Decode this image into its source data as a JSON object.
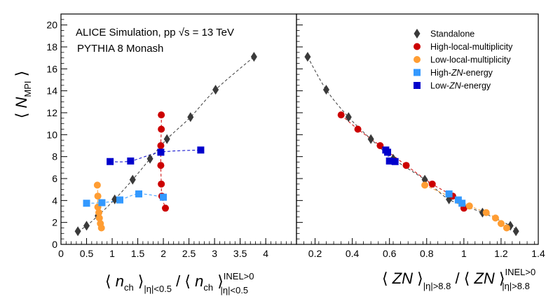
{
  "chart_data": [
    {
      "type": "scatter",
      "title": "ALICE Simulation, pp √s = 13 TeV",
      "subtitle": "PYTHIA 8 Monash",
      "ylabel": "⟨ N_MPI ⟩",
      "xlabel": "⟨ n_ch ⟩_|η|<0.5 / ⟨ n_ch ⟩^INEL>0_|η|<0.5",
      "xlim": [
        0,
        4.6
      ],
      "ylim": [
        0,
        21
      ],
      "xticks": [
        0,
        0.5,
        1,
        1.5,
        2,
        2.5,
        3,
        3.5,
        4
      ],
      "xtick_labels": [
        "0",
        "0.5",
        "1",
        "1.5",
        "2",
        "2.5",
        "3",
        "3.5",
        "4"
      ],
      "yticks": [
        0,
        2,
        4,
        6,
        8,
        10,
        12,
        14,
        16,
        18,
        20
      ],
      "series": [
        {
          "name": "Standalone",
          "marker": "diamond",
          "color": "#3a3a3a",
          "x": [
            0.33,
            0.5,
            0.72,
            1.05,
            1.4,
            1.74,
            2.07,
            2.53,
            3.02,
            3.77
          ],
          "y": [
            1.2,
            1.7,
            2.6,
            4.1,
            5.9,
            7.8,
            9.6,
            11.6,
            14.1,
            17.1
          ]
        },
        {
          "name": "High-local-multiplicity",
          "marker": "circle",
          "color": "#cc0000",
          "x": [
            1.96,
            1.96,
            1.95,
            1.95,
            1.96,
            1.97,
            2.04
          ],
          "y": [
            11.8,
            10.5,
            9.0,
            7.2,
            5.5,
            4.4,
            3.3
          ]
        },
        {
          "name": "Low-local-multiplicity",
          "marker": "circle",
          "color": "#ff9d33",
          "x": [
            0.71,
            0.72,
            0.72,
            0.74,
            0.75,
            0.77,
            0.79
          ],
          "y": [
            5.4,
            4.4,
            3.4,
            2.9,
            2.4,
            1.9,
            1.5
          ]
        },
        {
          "name": "High-ZN-energy",
          "marker": "square",
          "color": "#3399ff",
          "x": [
            0.5,
            0.8,
            1.15,
            1.52,
            2.0
          ],
          "y": [
            3.75,
            3.8,
            4.05,
            4.6,
            4.3
          ]
        },
        {
          "name": "Low-ZN-energy",
          "marker": "square",
          "color": "#0000cc",
          "x": [
            0.96,
            1.36,
            1.95,
            2.73
          ],
          "y": [
            7.55,
            7.6,
            8.4,
            8.6
          ]
        }
      ]
    },
    {
      "type": "scatter",
      "xlabel": "⟨ ZN ⟩_|η|>8.8 / ⟨ ZN ⟩^INEL>0_|η|>8.8",
      "xlim": [
        0.1,
        1.4
      ],
      "ylim": [
        0,
        21
      ],
      "xticks": [
        0.2,
        0.4,
        0.6,
        0.8,
        1.0,
        1.2,
        1.4
      ],
      "xtick_labels": [
        "0.2",
        "0.4",
        "0.6",
        "0.8",
        "1",
        "1.2",
        "1.4"
      ],
      "legend": "top-right",
      "series": [
        {
          "name": "Standalone",
          "marker": "diamond",
          "color": "#3a3a3a",
          "x": [
            0.16,
            0.26,
            0.38,
            0.5,
            0.62,
            0.79,
            0.92,
            1.1,
            1.25,
            1.28
          ],
          "y": [
            17.1,
            14.1,
            11.6,
            9.6,
            7.8,
            5.9,
            4.1,
            2.9,
            1.7,
            1.2
          ]
        },
        {
          "name": "High-local-multiplicity",
          "marker": "circle",
          "color": "#cc0000",
          "x": [
            0.34,
            0.43,
            0.55,
            0.69,
            0.83,
            0.94,
            1.0
          ],
          "y": [
            11.8,
            10.5,
            9.0,
            7.2,
            5.5,
            4.4,
            3.3
          ]
        },
        {
          "name": "Low-local-multiplicity",
          "marker": "circle",
          "color": "#ff9d33",
          "x": [
            0.79,
            0.97,
            1.03,
            1.12,
            1.17,
            1.2,
            1.23
          ],
          "y": [
            5.4,
            4.0,
            3.5,
            2.9,
            2.4,
            1.9,
            1.5
          ]
        },
        {
          "name": "High-ZN-energy",
          "marker": "square",
          "color": "#3399ff",
          "x": [
            0.92,
            0.97,
            0.99
          ],
          "y": [
            4.6,
            4.05,
            3.75
          ]
        },
        {
          "name": "Low-ZN-energy",
          "marker": "square",
          "color": "#0000cc",
          "x": [
            0.58,
            0.59,
            0.6,
            0.63
          ],
          "y": [
            8.6,
            8.4,
            7.6,
            7.55
          ]
        }
      ]
    }
  ]
}
